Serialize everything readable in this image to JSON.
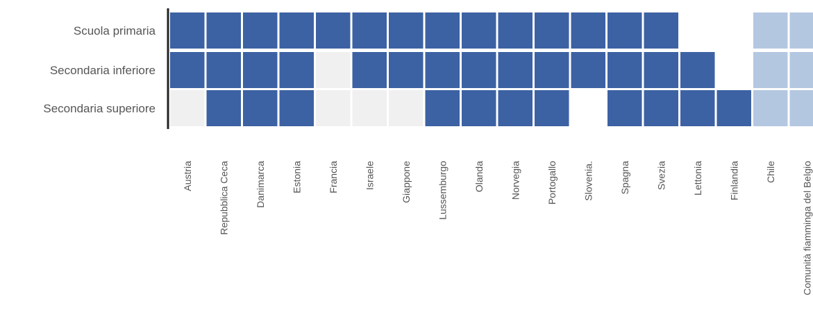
{
  "chart_data": {
    "type": "heatmap",
    "title": "",
    "xlabel": "",
    "ylabel": "",
    "rows": [
      "Scuola primaria",
      "Secondaria inferiore",
      "Secondaria superiore"
    ],
    "columns": [
      "Austria",
      "Repubblica Ceca",
      "Danimarca",
      "Estonia",
      "Francia",
      "Israele",
      "Giappone",
      "Lussemburgo",
      "Olanda",
      "Norvegia",
      "Portogallo",
      "Slovenia.",
      "Spagna",
      "Svezia",
      "Lettonia",
      "Finlandia",
      "Chile",
      "Comunità fiamminga del Belgio"
    ],
    "values": [
      [
        2,
        2,
        2,
        2,
        2,
        2,
        2,
        2,
        2,
        2,
        2,
        2,
        2,
        2,
        0,
        0,
        1,
        1
      ],
      [
        2,
        2,
        2,
        2,
        3,
        2,
        2,
        2,
        2,
        2,
        2,
        2,
        2,
        2,
        2,
        0,
        1,
        1
      ],
      [
        3,
        2,
        2,
        2,
        3,
        3,
        3,
        2,
        2,
        2,
        2,
        0,
        2,
        2,
        2,
        2,
        1,
        1
      ]
    ],
    "value_legend": {
      "0": "blank",
      "1": "light blue",
      "2": "dark blue",
      "3": "light grey"
    },
    "colors": {
      "0": "#ffffff",
      "1": "#b4c7e1",
      "2": "#3d62a3",
      "3": "#f0f0f0"
    },
    "axis_color": "#222222",
    "grid": false,
    "legend": "none"
  }
}
